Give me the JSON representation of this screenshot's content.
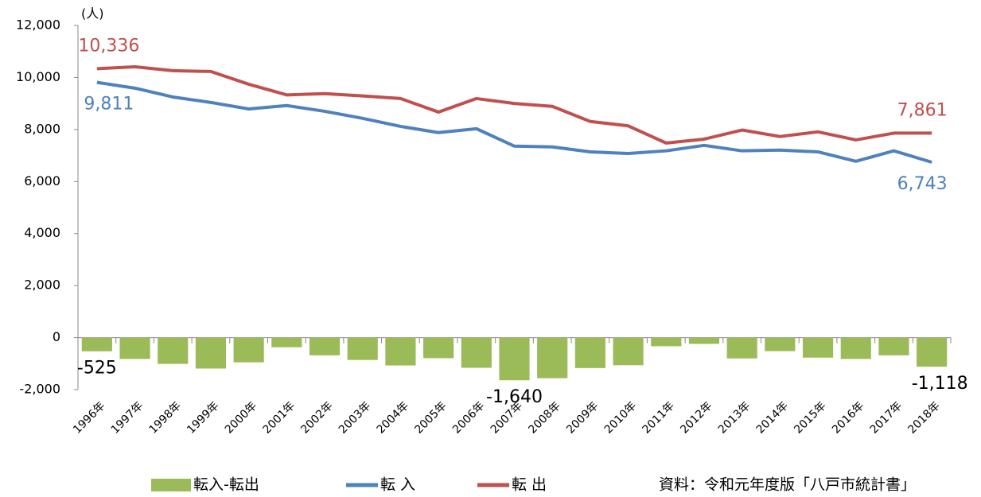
{
  "chart_data": {
    "type": "combo",
    "y_unit_label": "(人)",
    "source_note": "資料：令和元年度版「八戸市統計書」",
    "categories": [
      "1996年",
      "1997年",
      "1998年",
      "1999年",
      "2000年",
      "2001年",
      "2002年",
      "2003年",
      "2004年",
      "2005年",
      "2006年",
      "2007年",
      "2008年",
      "2009年",
      "2010年",
      "2011年",
      "2012年",
      "2013年",
      "2014年",
      "2015年",
      "2016年",
      "2017年",
      "2018年"
    ],
    "series": [
      {
        "name": "転入-転出",
        "type": "bar",
        "color": "#9bbb59",
        "values": [
          -525,
          -820,
          -1010,
          -1190,
          -950,
          -370,
          -680,
          -860,
          -1070,
          -790,
          -1160,
          -1640,
          -1560,
          -1170,
          -1060,
          -330,
          -240,
          -800,
          -520,
          -770,
          -820,
          -680,
          -1118
        ],
        "value_labels": [
          "-525",
          null,
          null,
          null,
          null,
          null,
          null,
          null,
          null,
          null,
          null,
          "-1,640",
          null,
          null,
          null,
          null,
          null,
          null,
          null,
          null,
          null,
          null,
          "-1,118"
        ]
      },
      {
        "name": "転 入",
        "type": "line",
        "color": "#4f81bd",
        "values": [
          9811,
          9590,
          9250,
          9040,
          8790,
          8920,
          8700,
          8430,
          8120,
          7880,
          8030,
          7360,
          7330,
          7140,
          7080,
          7180,
          7390,
          7180,
          7210,
          7140,
          6780,
          7180,
          6743
        ],
        "value_labels": [
          "9,811",
          null,
          null,
          null,
          null,
          null,
          null,
          null,
          null,
          null,
          null,
          null,
          null,
          null,
          null,
          null,
          null,
          null,
          null,
          null,
          null,
          null,
          "6,743"
        ]
      },
      {
        "name": "転 出",
        "type": "line",
        "color": "#c0504d",
        "values": [
          10336,
          10410,
          10260,
          10230,
          9740,
          9330,
          9380,
          9290,
          9190,
          8670,
          9190,
          9000,
          8890,
          8310,
          8140,
          7480,
          7630,
          7980,
          7730,
          7910,
          7600,
          7860,
          7861
        ],
        "value_labels": [
          "10,336",
          null,
          null,
          null,
          null,
          null,
          null,
          null,
          null,
          null,
          null,
          null,
          null,
          null,
          null,
          null,
          null,
          null,
          null,
          null,
          null,
          null,
          "7,861"
        ]
      }
    ],
    "ylim": [
      -2000,
      12000
    ],
    "yticks": [
      {
        "value": -2000,
        "label": "-2,000"
      },
      0,
      {
        "value": 2000,
        "label": "2,000"
      },
      {
        "value": 4000,
        "label": "4,000"
      },
      {
        "value": 6000,
        "label": "6,000"
      },
      {
        "value": 8000,
        "label": "8,000"
      },
      {
        "value": 10000,
        "label": "10,000"
      },
      {
        "value": 12000,
        "label": "12,000"
      }
    ],
    "grid": false
  }
}
